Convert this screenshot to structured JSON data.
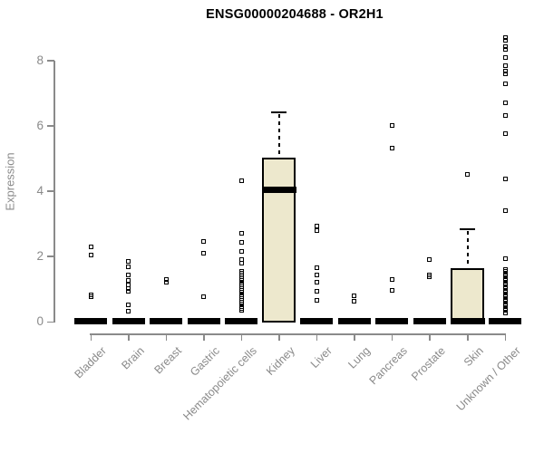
{
  "chart_data": {
    "type": "boxplot",
    "title": "ENSG00000204688 - OR2H1",
    "ylabel": "Expression",
    "xlabel": "",
    "yticks": [
      0,
      2,
      4,
      6,
      8
    ],
    "ylim": [
      0,
      8.8
    ],
    "grid": false,
    "legend": "none",
    "axis_color": "#8a8a8a",
    "box_fill": "#EDE8CD",
    "box_stroke": "#000000",
    "categories": [
      "Bladder",
      "Brain",
      "Breast",
      "Gastric",
      "Hematopoietic cells",
      "Kidney",
      "Liver",
      "Lung",
      "Pancreas",
      "Prostate",
      "Skin",
      "Unknown / Other"
    ],
    "series": [
      {
        "name": "Bladder",
        "q1": 0,
        "median": 0,
        "q3": 0,
        "whisker_low": 0,
        "whisker_high": 0,
        "points": [
          2.3,
          2.05,
          0.82,
          0.76
        ]
      },
      {
        "name": "Brain",
        "q1": 0,
        "median": 0,
        "q3": 0,
        "whisker_low": 0,
        "whisker_high": 0,
        "points": [
          1.85,
          1.69,
          1.44,
          1.27,
          1.11,
          1.02,
          0.92,
          0.5,
          0.33
        ]
      },
      {
        "name": "Breast",
        "q1": 0,
        "median": 0,
        "q3": 0,
        "whisker_low": 0,
        "whisker_high": 0,
        "points": [
          1.28,
          1.21
        ]
      },
      {
        "name": "Gastric",
        "q1": 0,
        "median": 0,
        "q3": 0,
        "whisker_low": 0,
        "whisker_high": 0,
        "points": [
          2.46,
          2.1,
          0.75
        ]
      },
      {
        "name": "Hematopoietic cells",
        "q1": 0,
        "median": 0,
        "q3": 0,
        "whisker_low": 0,
        "whisker_high": 0,
        "points": [
          4.32,
          2.71,
          2.44,
          2.16,
          1.9,
          1.8,
          1.55,
          1.49,
          1.43,
          1.37,
          1.31,
          1.25,
          1.19,
          1.13,
          1.07,
          1.01,
          0.95,
          0.89,
          0.83,
          0.77,
          0.71,
          0.65,
          0.59,
          0.53,
          0.47,
          0.41,
          0.35
        ]
      },
      {
        "name": "Kidney",
        "q1": 0,
        "median": 4.0,
        "q3": 5.02,
        "whisker_low": 0,
        "whisker_high": 6.41,
        "points": []
      },
      {
        "name": "Liver",
        "q1": 0,
        "median": 0,
        "q3": 0,
        "whisker_low": 0,
        "whisker_high": 0,
        "points": [
          2.92,
          2.8,
          1.66,
          1.44,
          1.22,
          0.94,
          0.64
        ]
      },
      {
        "name": "Lung",
        "q1": 0,
        "median": 0,
        "q3": 0,
        "whisker_low": 0,
        "whisker_high": 0,
        "points": [
          0.78,
          0.62
        ]
      },
      {
        "name": "Pancreas",
        "q1": 0,
        "median": 0,
        "q3": 0,
        "whisker_low": 0,
        "whisker_high": 0,
        "points": [
          6.0,
          5.3,
          1.3,
          0.97
        ]
      },
      {
        "name": "Prostate",
        "q1": 0,
        "median": 0,
        "q3": 0,
        "whisker_low": 0,
        "whisker_high": 0,
        "points": [
          1.89,
          1.43,
          1.36
        ]
      },
      {
        "name": "Skin",
        "q1": 0,
        "median": 0,
        "q3": 1.65,
        "whisker_low": 0,
        "whisker_high": 2.83,
        "points": [
          4.52
        ]
      },
      {
        "name": "Unknown / Other",
        "q1": 0,
        "median": 0,
        "q3": 0,
        "whisker_low": 0,
        "whisker_high": 0,
        "points": [
          8.7,
          8.6,
          8.42,
          8.33,
          8.08,
          7.83,
          7.68,
          7.58,
          7.28,
          6.7,
          6.31,
          5.76,
          4.37,
          3.41,
          1.94,
          1.6,
          1.53,
          1.46,
          1.39,
          1.32,
          1.25,
          1.18,
          1.11,
          1.04,
          0.97,
          0.9,
          0.83,
          0.76,
          0.69,
          0.62,
          0.55,
          0.48,
          0.41,
          0.34,
          0.27
        ]
      }
    ]
  }
}
